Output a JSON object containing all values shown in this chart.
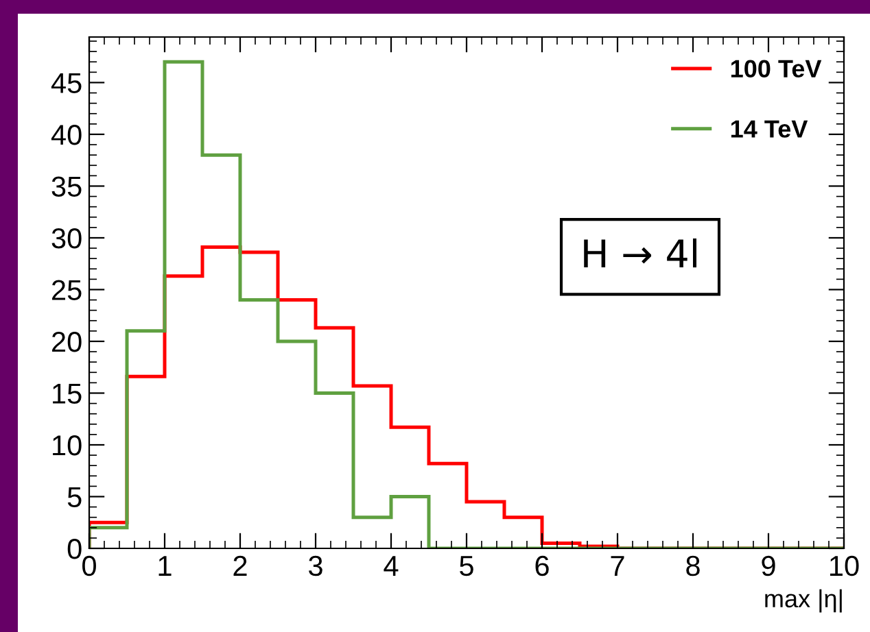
{
  "chart_data": {
    "type": "histogram",
    "xlabel": "max |η|",
    "bins": [
      0,
      0.5,
      1,
      1.5,
      2,
      2.5,
      3,
      3.5,
      4,
      4.5,
      5,
      5.5,
      6,
      6.5,
      7,
      7.5,
      8,
      8.5,
      9,
      9.5,
      10
    ],
    "series": [
      {
        "name": "100 TeV",
        "color": "#ff0000",
        "values": [
          2.5,
          16.6,
          26.3,
          29.1,
          28.6,
          24.0,
          21.3,
          15.7,
          11.7,
          8.2,
          4.5,
          3.0,
          0.5,
          0.2,
          0,
          0,
          0,
          0,
          0,
          0
        ]
      },
      {
        "name": "14 TeV",
        "color": "#5fa040",
        "values": [
          2.0,
          21,
          47,
          38,
          24,
          20,
          15,
          3,
          5,
          0,
          0,
          0,
          0,
          0,
          0,
          0,
          0,
          0,
          0,
          0
        ]
      }
    ],
    "annotations": [
      {
        "text": "H → 4l"
      }
    ],
    "xlim": [
      0,
      10
    ],
    "xticks": [
      0,
      1,
      2,
      3,
      4,
      5,
      6,
      7,
      8,
      9,
      10
    ],
    "ylim": [
      0,
      49.4
    ],
    "yticks": [
      0,
      5,
      10,
      15,
      20,
      25,
      30,
      35,
      40,
      45
    ],
    "legend": "top right",
    "grid": false
  }
}
